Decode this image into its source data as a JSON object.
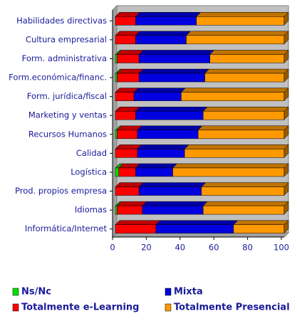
{
  "chart_data": {
    "type": "bar",
    "orientation": "horizontal",
    "stacked": true,
    "categories": [
      "Habilidades directivas",
      "Cultura empresarial",
      "Form. administrativa",
      "Form.económica/financ.",
      "Form. jurídica/fiscal",
      "Marketing y ventas",
      "Recursos Humanos",
      "Calidad",
      "Logística",
      "Prod. propios empresa",
      "Idiomas",
      "Informática/Internet"
    ],
    "series": [
      {
        "name": "Ns/Nc",
        "color": "#00e000",
        "values": [
          0,
          0,
          1,
          1,
          0,
          0,
          1,
          0,
          2,
          0,
          1,
          0
        ]
      },
      {
        "name": "Totalmente e-Learning",
        "color": "#ff0000",
        "values": [
          12,
          12,
          13,
          13,
          11,
          12,
          12,
          13,
          10,
          14,
          15,
          24
        ]
      },
      {
        "name": "Mixta",
        "color": "#0000e0",
        "values": [
          36,
          30,
          42,
          39,
          28,
          40,
          36,
          28,
          22,
          37,
          36,
          46
        ]
      },
      {
        "name": "Totalmente Presencial",
        "color": "#ff9900",
        "values": [
          52,
          58,
          44,
          47,
          61,
          48,
          51,
          59,
          66,
          49,
          48,
          30
        ]
      }
    ],
    "xlim": [
      0,
      100
    ],
    "xticks": [
      0,
      20,
      40,
      60,
      80,
      100
    ]
  }
}
